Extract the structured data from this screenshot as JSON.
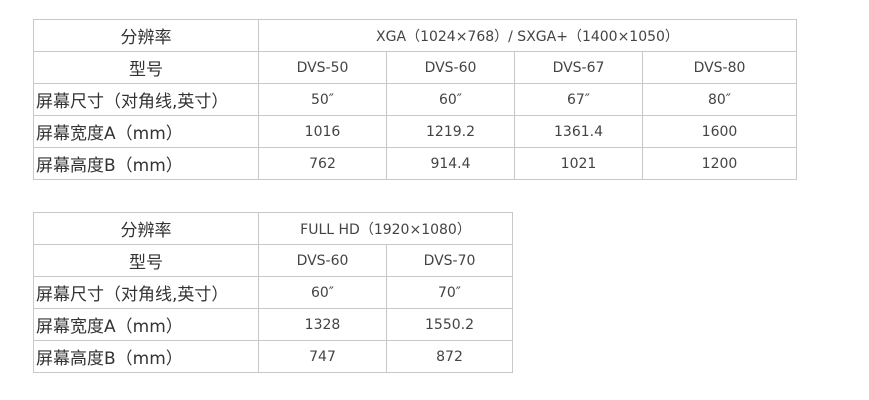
{
  "tables": [
    {
      "rows": [
        [
          "分辨率",
          "XGA（1024×768）/ SXGA+（1400×1050）"
        ],
        [
          "型号",
          "DVS-50",
          "DVS-60",
          "DVS-67",
          "DVS-80"
        ],
        [
          "屏幕尺寸（对角线,英寸）",
          "50″",
          "60″",
          "67″",
          "80″"
        ],
        [
          "屏幕宽度A（mm）",
          "1016",
          "1219.2",
          "1361.4",
          "1600"
        ],
        [
          "屏幕高度B（mm）",
          "762",
          "914.4",
          "1021",
          "1200"
        ]
      ]
    },
    {
      "rows": [
        [
          "分辨率",
          "FULL HD（1920×1080）"
        ],
        [
          "型号",
          "DVS-60",
          "DVS-70"
        ],
        [
          "屏幕尺寸（对角线,英寸）",
          "60″",
          "70″"
        ],
        [
          "屏幕宽度A（mm）",
          "1328",
          "1550.2"
        ],
        [
          "屏幕高度B（mm）",
          "747",
          "872"
        ]
      ]
    }
  ]
}
